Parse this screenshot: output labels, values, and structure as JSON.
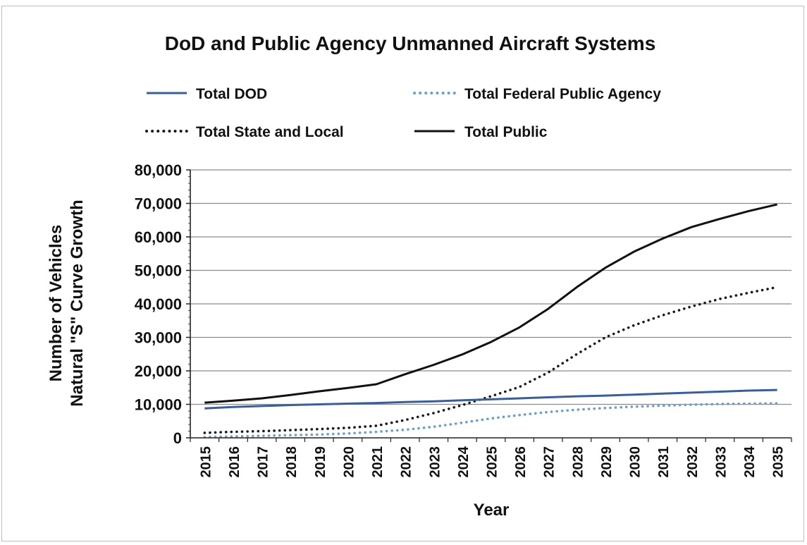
{
  "chart_data": {
    "type": "line",
    "title": "DoD and Public Agency Unmanned Aircraft Systems",
    "xlabel": "Year",
    "ylabel_lines": [
      "Number of Vehicles",
      "Natural \"S\" Curve Growth"
    ],
    "ylim": [
      0,
      80000
    ],
    "yticks": [
      0,
      10000,
      20000,
      30000,
      40000,
      50000,
      60000,
      70000,
      80000
    ],
    "ytick_labels": [
      "0",
      "10,000",
      "20,000",
      "30,000",
      "40,000",
      "50,000",
      "60,000",
      "70,000",
      "80,000"
    ],
    "x": [
      "2015",
      "2016",
      "2017",
      "2018",
      "2019",
      "2020",
      "2021",
      "2022",
      "2023",
      "2024",
      "2025",
      "2026",
      "2027",
      "2028",
      "2029",
      "2030",
      "2031",
      "2032",
      "2033",
      "2034",
      "2035"
    ],
    "grid": "horizontal",
    "legend_position": "top",
    "series": [
      {
        "name": "Total DOD",
        "style": "solid",
        "color": "#3a5f95",
        "values": [
          8800,
          9200,
          9500,
          9800,
          10000,
          10200,
          10400,
          10700,
          10900,
          11200,
          11500,
          11800,
          12100,
          12400,
          12600,
          12900,
          13200,
          13500,
          13800,
          14100,
          14300
        ]
      },
      {
        "name": "Total Federal Public Agency",
        "style": "dotted",
        "color": "#6a9fd1",
        "values": [
          200,
          400,
          600,
          800,
          1000,
          1300,
          1800,
          2400,
          3300,
          4500,
          5800,
          6800,
          7700,
          8400,
          8900,
          9300,
          9600,
          9900,
          10100,
          10200,
          10300
        ]
      },
      {
        "name": "Total State and Local",
        "style": "dotted",
        "color": "#1a1a1a",
        "values": [
          1500,
          1800,
          2000,
          2300,
          2600,
          3000,
          3600,
          5300,
          7400,
          9800,
          12400,
          15200,
          19500,
          25000,
          30000,
          33600,
          36600,
          39200,
          41500,
          43300,
          45000
        ]
      },
      {
        "name": "Total Public",
        "style": "solid",
        "color": "#111111",
        "values": [
          10500,
          11100,
          11800,
          12800,
          13900,
          14900,
          16000,
          19000,
          21800,
          24900,
          28600,
          33000,
          38500,
          45000,
          50800,
          55600,
          59500,
          62900,
          65400,
          67700,
          69700
        ]
      }
    ]
  }
}
